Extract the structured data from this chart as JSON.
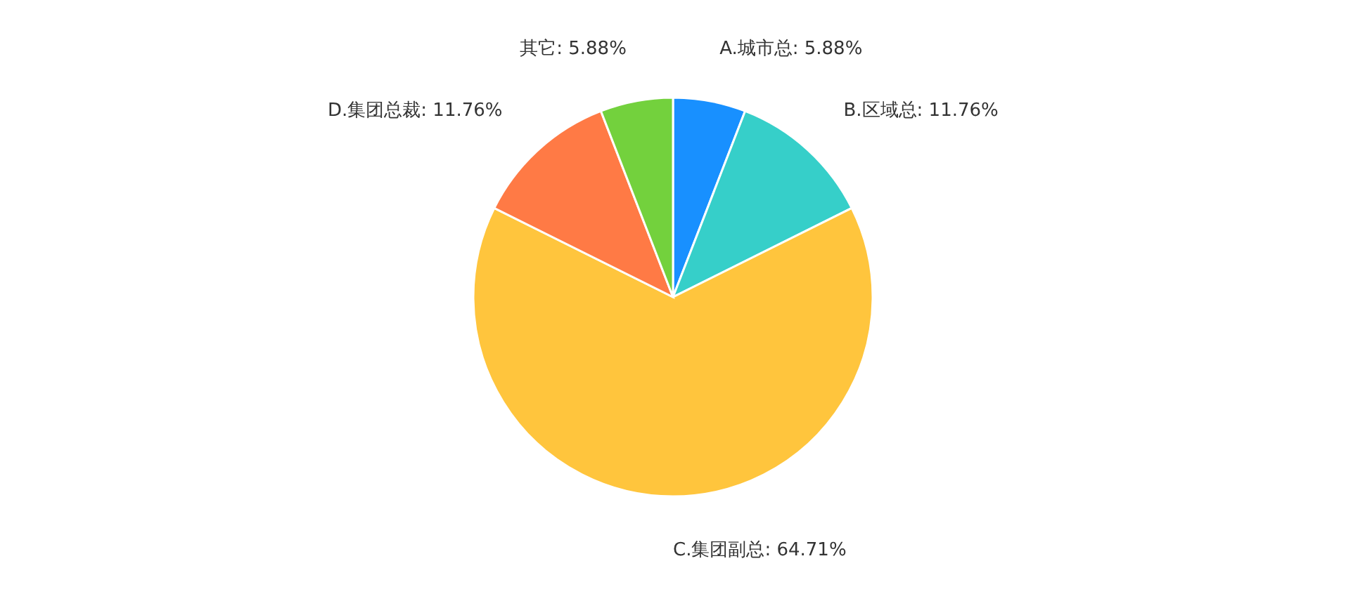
{
  "chart_data": {
    "type": "pie",
    "categories": [
      "A.城市总",
      "B.区域总",
      "C.集团副总",
      "D.集团总裁",
      "其它"
    ],
    "values": [
      5.88,
      11.76,
      64.71,
      11.76,
      5.88
    ],
    "value_labels": [
      "5.88%",
      "11.76%",
      "64.71%",
      "11.76%",
      "5.88%"
    ],
    "colors": [
      "#1890ff",
      "#36cfc9",
      "#ffc53d",
      "#ff7a45",
      "#73d13d"
    ]
  }
}
